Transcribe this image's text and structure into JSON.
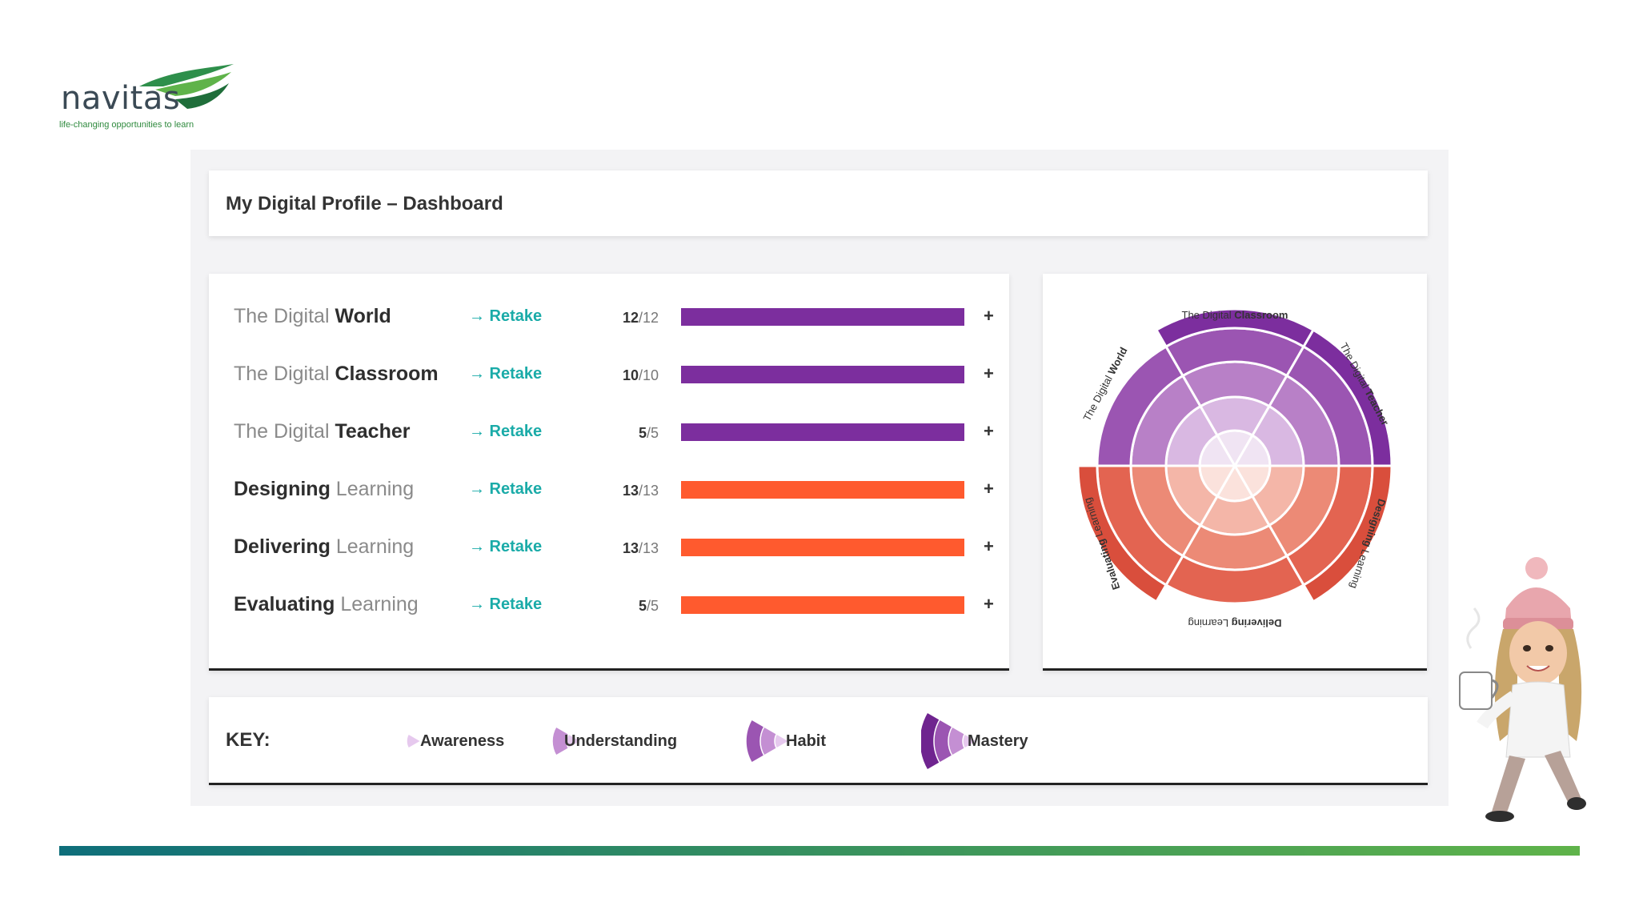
{
  "logo": {
    "name": "navitas",
    "tagline": "life-changing opportunities to learn"
  },
  "header": {
    "title": "My Digital Profile – Dashboard"
  },
  "topics": [
    {
      "prefix": "The Digital",
      "main": "World",
      "order": "prefix-first",
      "retake": "→ Retake",
      "score": "12",
      "total": "/12",
      "progress": 1.0,
      "color": "#7c2e9e"
    },
    {
      "prefix": "The Digital",
      "main": "Classroom",
      "order": "prefix-first",
      "retake": "→ Retake",
      "score": "10",
      "total": "/10",
      "progress": 1.0,
      "color": "#7c2e9e"
    },
    {
      "prefix": "The Digital",
      "main": "Teacher",
      "order": "prefix-first",
      "retake": "→ Retake",
      "score": "5",
      "total": "/5",
      "progress": 1.0,
      "color": "#7c2e9e"
    },
    {
      "prefix": "Learning",
      "main": "Designing",
      "order": "main-first",
      "retake": "→ Retake",
      "score": "13",
      "total": "/13",
      "progress": 1.0,
      "color": "#ff5a2e"
    },
    {
      "prefix": "Learning",
      "main": "Delivering",
      "order": "main-first",
      "retake": "→ Retake",
      "score": "13",
      "total": "/13",
      "progress": 1.0,
      "color": "#ff5a2e"
    },
    {
      "prefix": "Learning",
      "main": "Evaluating",
      "order": "main-first",
      "retake": "→ Retake",
      "score": "5",
      "total": "/5",
      "progress": 1.0,
      "color": "#ff5a2e"
    }
  ],
  "plus_label": "+",
  "wheel": {
    "labels": {
      "world": [
        "The Digital",
        "World"
      ],
      "classroom": [
        "The Digital",
        "Classroom"
      ],
      "teacher": [
        "The Digital",
        "Teacher"
      ],
      "designing": [
        "Designing",
        "Learning"
      ],
      "delivering": [
        "Delivering",
        "Learning"
      ],
      "evaluating": [
        "Evaluating",
        "Learning"
      ]
    },
    "purple_shades": [
      "#f0e4f3",
      "#d9b8e2",
      "#b880c7",
      "#9b55b2",
      "#7c2e9e"
    ],
    "red_shades": [
      "#fbe2dc",
      "#f4b6a8",
      "#ec8a76",
      "#e36451",
      "#d94e3c"
    ]
  },
  "key": {
    "title": "KEY:",
    "levels": [
      "Awareness",
      "Understanding",
      "Habit",
      "Mastery"
    ],
    "colors": [
      "#e6c9ee",
      "#c48fd3",
      "#9b55b2",
      "#6f248f"
    ]
  }
}
